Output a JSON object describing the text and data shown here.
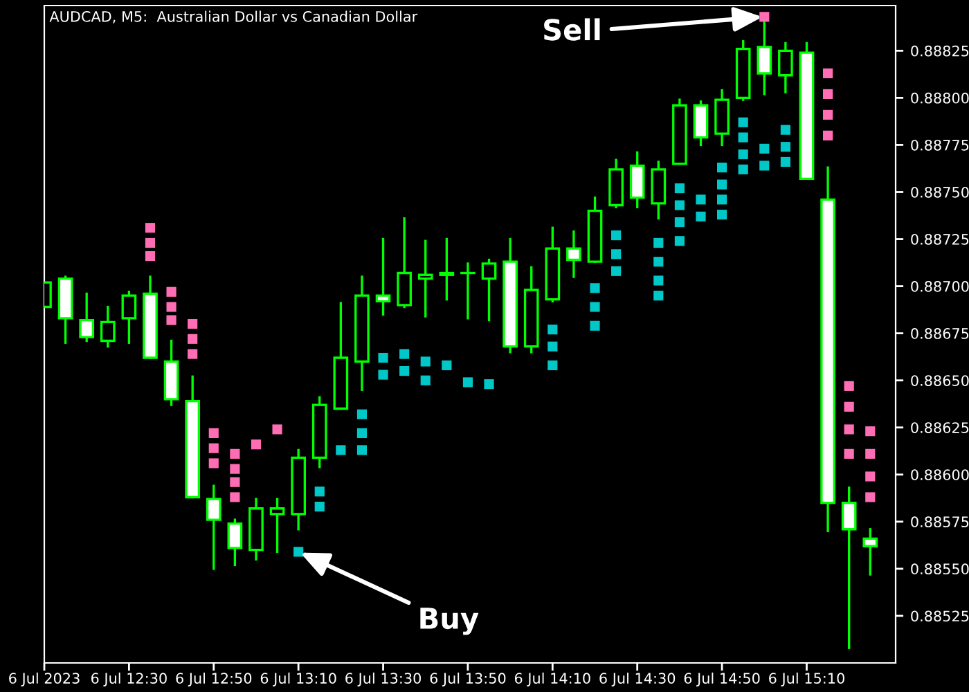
{
  "chart_data": {
    "type": "candlestick",
    "title": "AUDCAD, M5:  Australian Dollar vs Canadian Dollar",
    "color": "#00ff00",
    "x": [
      "2023-07-06T12:10",
      "2023-07-06T12:15",
      "2023-07-06T12:20",
      "2023-07-06T12:25",
      "2023-07-06T12:30",
      "2023-07-06T12:35",
      "2023-07-06T12:40",
      "2023-07-06T12:45",
      "2023-07-06T12:50",
      "2023-07-06T12:55",
      "2023-07-06T13:00",
      "2023-07-06T13:05",
      "2023-07-06T13:10",
      "2023-07-06T13:15",
      "2023-07-06T13:20",
      "2023-07-06T13:25",
      "2023-07-06T13:30",
      "2023-07-06T13:35",
      "2023-07-06T13:40",
      "2023-07-06T13:45",
      "2023-07-06T13:50",
      "2023-07-06T13:55",
      "2023-07-06T14:00",
      "2023-07-06T14:05",
      "2023-07-06T14:10",
      "2023-07-06T14:15",
      "2023-07-06T14:20",
      "2023-07-06T14:25",
      "2023-07-06T14:30",
      "2023-07-06T14:35",
      "2023-07-06T14:40",
      "2023-07-06T14:45",
      "2023-07-06T14:50",
      "2023-07-06T14:55",
      "2023-07-06T15:00",
      "2023-07-06T15:05",
      "2023-07-06T15:10",
      "2023-07-06T15:15",
      "2023-07-06T15:20",
      "2023-07-06T15:25"
    ],
    "ohlc": [
      [
        0.88689,
        0.88702,
        0.88689,
        0.88702
      ],
      [
        0.88704,
        0.88705,
        0.8867,
        0.88683
      ],
      [
        0.88682,
        0.88696,
        0.88671,
        0.88673
      ],
      [
        0.88671,
        0.88689,
        0.88668,
        0.88681
      ],
      [
        0.88683,
        0.88697,
        0.8867,
        0.88695
      ],
      [
        0.88696,
        0.88705,
        0.88662,
        0.88662
      ],
      [
        0.8866,
        0.88671,
        0.88637,
        0.8864
      ],
      [
        0.88639,
        0.88652,
        0.88588,
        0.88588
      ],
      [
        0.88587,
        0.88594,
        0.8855,
        0.88576
      ],
      [
        0.88574,
        0.88576,
        0.88552,
        0.88561
      ],
      [
        0.8856,
        0.88587,
        0.88555,
        0.88582
      ],
      [
        0.88579,
        0.88587,
        0.88559,
        0.88582
      ],
      [
        0.88579,
        0.88613,
        0.88571,
        0.88609
      ],
      [
        0.88609,
        0.88641,
        0.88604,
        0.88637
      ],
      [
        0.88635,
        0.88691,
        0.88635,
        0.88662
      ],
      [
        0.8866,
        0.88705,
        0.88645,
        0.88695
      ],
      [
        0.88695,
        0.88725,
        0.88685,
        0.88692
      ],
      [
        0.8869,
        0.88736,
        0.88689,
        0.88707
      ],
      [
        0.88704,
        0.88724,
        0.88684,
        0.88706
      ],
      [
        0.88706,
        0.88725,
        0.88693,
        0.88707
      ],
      [
        0.88707,
        0.88712,
        0.88683,
        0.88707
      ],
      [
        0.88704,
        0.88714,
        0.88682,
        0.88712
      ],
      [
        0.88713,
        0.88725,
        0.88665,
        0.88668
      ],
      [
        0.88668,
        0.8871,
        0.88665,
        0.88698
      ],
      [
        0.88693,
        0.88731,
        0.88692,
        0.8872
      ],
      [
        0.8872,
        0.88729,
        0.88705,
        0.88714
      ],
      [
        0.88713,
        0.88747,
        0.88713,
        0.8874
      ],
      [
        0.88743,
        0.88767,
        0.88742,
        0.88762
      ],
      [
        0.88764,
        0.88771,
        0.88742,
        0.88747
      ],
      [
        0.88744,
        0.88766,
        0.88736,
        0.88762
      ],
      [
        0.88765,
        0.88799,
        0.88765,
        0.88796
      ],
      [
        0.88796,
        0.88798,
        0.88775,
        0.88779
      ],
      [
        0.88781,
        0.88804,
        0.88775,
        0.88799
      ],
      [
        0.888,
        0.8883,
        0.88799,
        0.88826
      ],
      [
        0.88827,
        0.88841,
        0.88802,
        0.88813
      ],
      [
        0.88812,
        0.88829,
        0.88803,
        0.88825
      ],
      [
        0.88824,
        0.88829,
        0.88757,
        0.88757
      ],
      [
        0.88746,
        0.88763,
        0.8857,
        0.88585
      ],
      [
        0.88585,
        0.88593,
        0.88508,
        0.88571
      ],
      [
        0.88566,
        0.88571,
        0.88547,
        0.88562
      ]
    ],
    "series": [
      {
        "type": "scatter",
        "marker": "square",
        "color": "#ff6eb4",
        "x": [
          "2023-07-06T12:35",
          "2023-07-06T12:35",
          "2023-07-06T12:35",
          "2023-07-06T12:40",
          "2023-07-06T12:40",
          "2023-07-06T12:40",
          "2023-07-06T12:45",
          "2023-07-06T12:45",
          "2023-07-06T12:45",
          "2023-07-06T12:50",
          "2023-07-06T12:50",
          "2023-07-06T12:50",
          "2023-07-06T12:55",
          "2023-07-06T12:55",
          "2023-07-06T12:55",
          "2023-07-06T12:55",
          "2023-07-06T13:00",
          "2023-07-06T13:05",
          "2023-07-06T15:00",
          "2023-07-06T15:15",
          "2023-07-06T15:15",
          "2023-07-06T15:15",
          "2023-07-06T15:15",
          "2023-07-06T15:20",
          "2023-07-06T15:20",
          "2023-07-06T15:20",
          "2023-07-06T15:20",
          "2023-07-06T15:25",
          "2023-07-06T15:25",
          "2023-07-06T15:25",
          "2023-07-06T15:25"
        ],
        "values": [
          0.88731,
          0.88723,
          0.88716,
          0.88697,
          0.88689,
          0.88682,
          0.8868,
          0.88672,
          0.88664,
          0.88622,
          0.88614,
          0.88606,
          0.88611,
          0.88603,
          0.88596,
          0.88588,
          0.88616,
          0.88624,
          0.88843,
          0.88813,
          0.88802,
          0.88791,
          0.8878,
          0.88647,
          0.88636,
          0.88624,
          0.88611,
          0.88623,
          0.88611,
          0.88599,
          0.88588
        ]
      },
      {
        "type": "scatter",
        "marker": "square",
        "color": "#00c8c8",
        "x": [
          "2023-07-06T13:10",
          "2023-07-06T13:15",
          "2023-07-06T13:15",
          "2023-07-06T13:20",
          "2023-07-06T13:25",
          "2023-07-06T13:25",
          "2023-07-06T13:25",
          "2023-07-06T13:30",
          "2023-07-06T13:30",
          "2023-07-06T13:35",
          "2023-07-06T13:35",
          "2023-07-06T13:40",
          "2023-07-06T13:40",
          "2023-07-06T13:45",
          "2023-07-06T13:50",
          "2023-07-06T13:55",
          "2023-07-06T14:10",
          "2023-07-06T14:10",
          "2023-07-06T14:10",
          "2023-07-06T14:20",
          "2023-07-06T14:20",
          "2023-07-06T14:20",
          "2023-07-06T14:25",
          "2023-07-06T14:25",
          "2023-07-06T14:25",
          "2023-07-06T14:35",
          "2023-07-06T14:35",
          "2023-07-06T14:35",
          "2023-07-06T14:35",
          "2023-07-06T14:40",
          "2023-07-06T14:40",
          "2023-07-06T14:40",
          "2023-07-06T14:40",
          "2023-07-06T14:45",
          "2023-07-06T14:45",
          "2023-07-06T14:50",
          "2023-07-06T14:50",
          "2023-07-06T14:50",
          "2023-07-06T14:50",
          "2023-07-06T14:55",
          "2023-07-06T14:55",
          "2023-07-06T14:55",
          "2023-07-06T14:55",
          "2023-07-06T15:00",
          "2023-07-06T15:00",
          "2023-07-06T15:05",
          "2023-07-06T15:05",
          "2023-07-06T15:05"
        ],
        "values": [
          0.88559,
          0.88591,
          0.88583,
          0.88613,
          0.88632,
          0.88622,
          0.88613,
          0.88662,
          0.88653,
          0.88664,
          0.88655,
          0.8866,
          0.8865,
          0.88658,
          0.88649,
          0.88648,
          0.88677,
          0.88668,
          0.88658,
          0.88699,
          0.88689,
          0.88679,
          0.88727,
          0.88717,
          0.88708,
          0.88723,
          0.88713,
          0.88703,
          0.88695,
          0.88752,
          0.88743,
          0.88734,
          0.88724,
          0.88746,
          0.88737,
          0.88763,
          0.88754,
          0.88746,
          0.88738,
          0.88787,
          0.88779,
          0.8877,
          0.88762,
          0.88773,
          0.88764,
          0.88783,
          0.88774,
          0.88766
        ]
      }
    ],
    "annotations": [
      {
        "text": "Buy",
        "x": "2023-07-06T13:10",
        "y": 0.88559
      },
      {
        "text": "Sell",
        "x": "2023-07-06T15:00",
        "y": 0.88843
      }
    ],
    "xlim": [
      "2023-07-06T12:10",
      "2023-07-06T15:31"
    ],
    "xticks": [
      {
        "value": "2023-07-06T12:10",
        "label": "6 Jul 2023"
      },
      {
        "value": "2023-07-06T12:30",
        "label": "6 Jul 12:30"
      },
      {
        "value": "2023-07-06T12:50",
        "label": "6 Jul 12:50"
      },
      {
        "value": "2023-07-06T13:10",
        "label": "6 Jul 13:10"
      },
      {
        "value": "2023-07-06T13:30",
        "label": "6 Jul 13:30"
      },
      {
        "value": "2023-07-06T13:50",
        "label": "6 Jul 13:50"
      },
      {
        "value": "2023-07-06T14:10",
        "label": "6 Jul 14:10"
      },
      {
        "value": "2023-07-06T14:30",
        "label": "6 Jul 14:30"
      },
      {
        "value": "2023-07-06T14:50",
        "label": "6 Jul 14:50"
      },
      {
        "value": "2023-07-06T15:10",
        "label": "6 Jul 15:10"
      }
    ],
    "ylim": [
      0.885,
      0.88849
    ],
    "yticks": [
      {
        "value": 0.88525,
        "label": "0.88525"
      },
      {
        "value": 0.8855,
        "label": "0.88550"
      },
      {
        "value": 0.88575,
        "label": "0.88575"
      },
      {
        "value": 0.886,
        "label": "0.88600"
      },
      {
        "value": 0.88625,
        "label": "0.88625"
      },
      {
        "value": 0.8865,
        "label": "0.88650"
      },
      {
        "value": 0.88675,
        "label": "0.88675"
      },
      {
        "value": 0.887,
        "label": "0.88700"
      },
      {
        "value": 0.88725,
        "label": "0.88725"
      },
      {
        "value": 0.8875,
        "label": "0.88750"
      },
      {
        "value": 0.88775,
        "label": "0.88775"
      },
      {
        "value": 0.888,
        "label": "0.88800"
      },
      {
        "value": 0.88825,
        "label": "0.88825"
      }
    ],
    "grid": false,
    "legend": false
  }
}
